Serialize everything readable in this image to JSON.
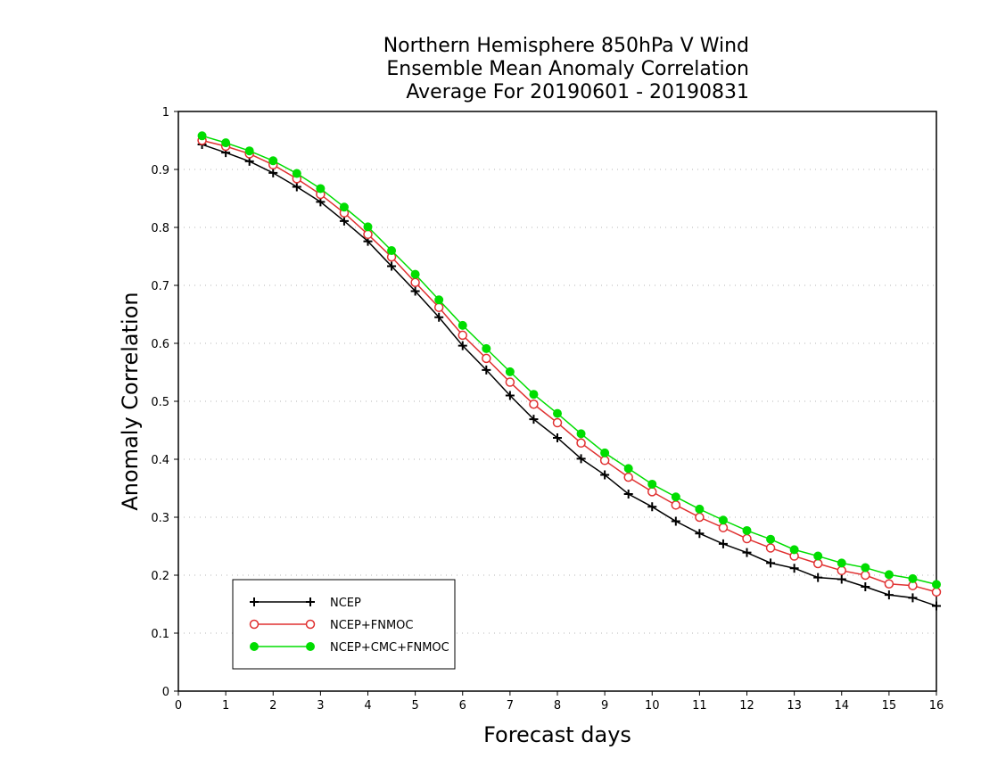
{
  "chart_data": {
    "type": "line",
    "title_lines": [
      "Northern Hemisphere 850hPa V Wind",
      "Ensemble Mean Anomaly Correlation",
      "Average For 20190601 - 20190831"
    ],
    "xlabel": "Forecast days",
    "ylabel": "Anomaly Correlation",
    "xlim": [
      0,
      16
    ],
    "ylim": [
      0,
      1
    ],
    "x_ticks": [
      0,
      1,
      2,
      3,
      4,
      5,
      6,
      7,
      8,
      9,
      10,
      11,
      12,
      13,
      14,
      15,
      16
    ],
    "y_ticks": [
      0,
      0.1,
      0.2,
      0.3,
      0.4,
      0.5,
      0.6,
      0.7,
      0.8,
      0.9,
      1
    ],
    "y_tick_labels": [
      "0",
      "0.1",
      "0.2",
      "0.3",
      "0.4",
      "0.5",
      "0.6",
      "0.7",
      "0.8",
      "0.9",
      "1"
    ],
    "grid": "horizontal dotted",
    "legend_position": "bottom-left",
    "x": [
      0.5,
      1,
      1.5,
      2,
      2.5,
      3,
      3.5,
      4,
      4.5,
      5,
      5.5,
      6,
      6.5,
      7,
      7.5,
      8,
      8.5,
      9,
      9.5,
      10,
      10.5,
      11,
      11.5,
      12,
      12.5,
      13,
      13.5,
      14,
      14.5,
      15,
      15.5,
      16
    ],
    "series": [
      {
        "name": "NCEP",
        "color": "#000000",
        "marker": "plus",
        "values": [
          0.943,
          0.929,
          0.914,
          0.894,
          0.87,
          0.844,
          0.811,
          0.776,
          0.733,
          0.69,
          0.645,
          0.596,
          0.554,
          0.51,
          0.469,
          0.437,
          0.401,
          0.373,
          0.34,
          0.318,
          0.293,
          0.272,
          0.254,
          0.239,
          0.221,
          0.212,
          0.196,
          0.193,
          0.18,
          0.166,
          0.161,
          0.147
        ]
      },
      {
        "name": "NCEP+FNMOC",
        "color": "#e03030",
        "marker": "open-circle",
        "values": [
          0.95,
          0.94,
          0.927,
          0.908,
          0.884,
          0.857,
          0.825,
          0.788,
          0.749,
          0.705,
          0.662,
          0.614,
          0.574,
          0.533,
          0.495,
          0.463,
          0.428,
          0.398,
          0.369,
          0.344,
          0.321,
          0.3,
          0.282,
          0.263,
          0.247,
          0.233,
          0.22,
          0.208,
          0.2,
          0.185,
          0.182,
          0.171
        ]
      },
      {
        "name": "NCEP+CMC+FNMOC",
        "color": "#00dd00",
        "marker": "filled-circle",
        "values": [
          0.958,
          0.946,
          0.932,
          0.915,
          0.893,
          0.867,
          0.835,
          0.801,
          0.76,
          0.719,
          0.675,
          0.631,
          0.591,
          0.551,
          0.512,
          0.479,
          0.444,
          0.411,
          0.384,
          0.357,
          0.335,
          0.314,
          0.295,
          0.277,
          0.262,
          0.244,
          0.233,
          0.221,
          0.213,
          0.201,
          0.194,
          0.184
        ]
      }
    ]
  }
}
